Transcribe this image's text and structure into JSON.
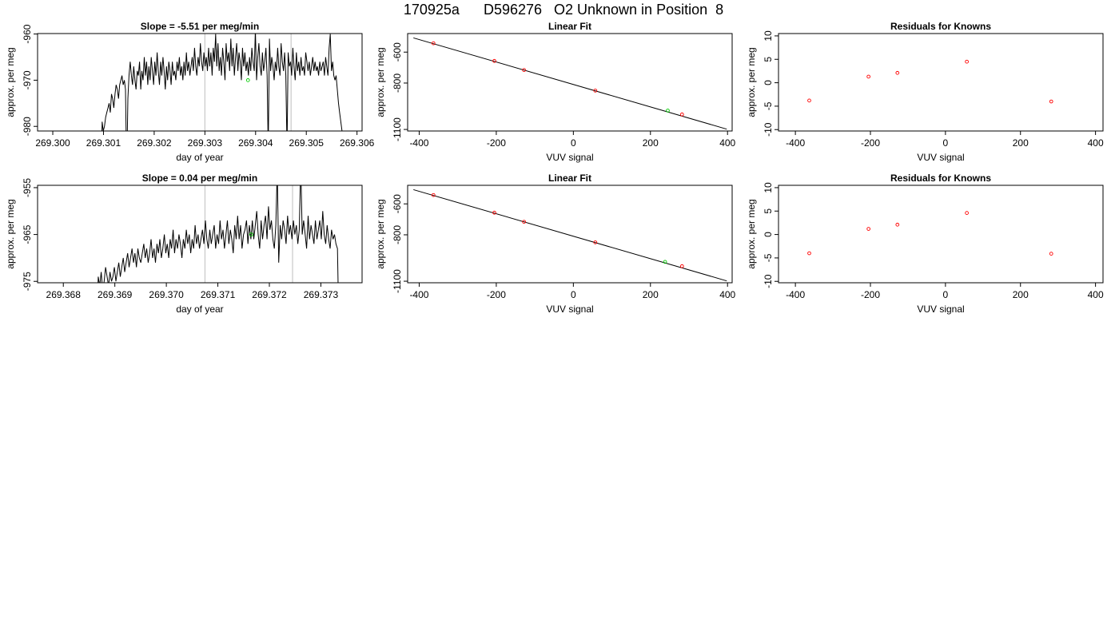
{
  "header": {
    "title": "170925a      D596276   O2 Unknown in Position  8"
  },
  "colors": {
    "known_point": "#ff0000",
    "unknown_point": "#00cc00",
    "series": "#000000",
    "marker_line": "#c8c8c8"
  },
  "chart_data": [
    {
      "id": "row1-timeseries",
      "type": "line",
      "title": "Slope =  -5.51  per meg/min",
      "xlabel": "day of year",
      "ylabel": "approx. per meg",
      "xlim": [
        269.2997,
        269.3061
      ],
      "ylim": [
        -981,
        -959.9
      ],
      "xticks": [
        "269.300",
        "269.301",
        "269.302",
        "269.303",
        "269.304",
        "269.305",
        "269.306"
      ],
      "xtick_values": [
        269.3,
        269.301,
        269.302,
        269.303,
        269.304,
        269.305,
        269.306
      ],
      "yticks": [
        "-960",
        "-970",
        "-980"
      ],
      "ytick_values": [
        -960,
        -970,
        -980
      ],
      "vertical_markers": [
        269.303,
        269.3047
      ],
      "unknown_point": {
        "x": 269.30385,
        "y": -970.0
      },
      "series_x_range": [
        269.30095,
        269.30575
      ],
      "series": [
        -992,
        -979,
        -981,
        -980,
        -978,
        -977,
        -976,
        -975,
        -977,
        -973,
        -974,
        -976,
        -973,
        -971,
        -972,
        -974,
        -971,
        -970,
        -969,
        -971,
        -970,
        -972,
        -990,
        -974,
        -969,
        -966,
        -969,
        -971,
        -967,
        -970,
        -972,
        -968,
        -969,
        -966,
        -972,
        -968,
        -970,
        -965,
        -969,
        -966,
        -971,
        -967,
        -970,
        -965,
        -968,
        -971,
        -966,
        -969,
        -964,
        -968,
        -971,
        -966,
        -969,
        -965,
        -968,
        -972,
        -967,
        -970,
        -966,
        -968,
        -971,
        -966,
        -969,
        -968,
        -970,
        -966,
        -968,
        -965,
        -969,
        -967,
        -970,
        -966,
        -969,
        -964,
        -968,
        -966,
        -969,
        -967,
        -965,
        -968,
        -963,
        -967,
        -969,
        -965,
        -967,
        -962,
        -966,
        -968,
        -964,
        -967,
        -965,
        -968,
        -963,
        -967,
        -964,
        -969,
        -963,
        -966,
        -960,
        -967,
        -962,
        -968,
        -965,
        -969,
        -963,
        -966,
        -970,
        -962,
        -966,
        -964,
        -968,
        -961,
        -967,
        -963,
        -969,
        -965,
        -962,
        -968,
        -964,
        -966,
        -970,
        -963,
        -967,
        -964,
        -968,
        -966,
        -969,
        -965,
        -968,
        -963,
        -966,
        -968,
        -959,
        -970,
        -965,
        -962,
        -967,
        -969,
        -964,
        -968,
        -966,
        -963,
        -969,
        -985,
        -961,
        -968,
        -965,
        -967,
        -970,
        -966,
        -968,
        -963,
        -967,
        -969,
        -962,
        -966,
        -968,
        -964,
        -969,
        -985,
        -964,
        -967,
        -966,
        -969,
        -963,
        -967,
        -970,
        -964,
        -968,
        -966,
        -969,
        -965,
        -968,
        -967,
        -969,
        -964,
        -966,
        -968,
        -966,
        -969,
        -967,
        -965,
        -968,
        -966,
        -968,
        -967,
        -969,
        -966,
        -968,
        -967,
        -966,
        -969,
        -965,
        -967,
        -969,
        -963,
        -960,
        -968,
        -966,
        -969,
        -970,
        -969,
        -972,
        -975,
        -977,
        -979,
        -981,
        -983,
        -985
      ]
    },
    {
      "id": "row1-linearfit",
      "type": "scatter",
      "title": "Linear Fit",
      "xlabel": "VUV signal",
      "ylabel": "approx. per meg",
      "xlim": [
        -430,
        412
      ],
      "ylim": [
        -1110,
        -480
      ],
      "xticks": [
        "-400",
        "-200",
        "0",
        "200",
        "400"
      ],
      "xtick_values": [
        -400,
        -200,
        0,
        200,
        400
      ],
      "yticks": [
        "-600",
        "-800",
        "-1100"
      ],
      "ytick_values": [
        -600,
        -800,
        -1100
      ],
      "fit_line": {
        "x": [
          -415,
          398
        ],
        "y": [
          -508,
          -1098
        ]
      },
      "known_points": {
        "x": [
          -363,
          -205,
          -128,
          57,
          282
        ],
        "y": [
          -543,
          -657,
          -716,
          -849,
          -1003
        ]
      },
      "unknown_points": {
        "x": [
          245
        ],
        "y": [
          -978
        ]
      }
    },
    {
      "id": "row1-residuals",
      "type": "scatter",
      "title": "Residuals for Knowns",
      "xlabel": "VUV signal",
      "ylabel": "approx. per meg",
      "xlim": [
        -445,
        420
      ],
      "ylim": [
        -10.3,
        10.5
      ],
      "xticks": [
        "-400",
        "-200",
        "0",
        "200",
        "400"
      ],
      "xtick_values": [
        -400,
        -200,
        0,
        200,
        400
      ],
      "yticks": [
        "10",
        "5",
        "0",
        "-5",
        "-10"
      ],
      "ytick_values": [
        10,
        5,
        0,
        -5,
        -10
      ],
      "known_points": {
        "x": [
          -363,
          -205,
          -128,
          57,
          282
        ],
        "y": [
          -3.8,
          1.3,
          2.1,
          4.5,
          -4.0
        ]
      }
    },
    {
      "id": "row2-timeseries",
      "type": "line",
      "title": "Slope =  0.04  per meg/min",
      "xlabel": "day of year",
      "ylabel": "approx. per meg",
      "xlim": [
        269.3675,
        269.3738
      ],
      "ylim": [
        -975.3,
        -954.5
      ],
      "xticks": [
        "269.368",
        "269.369",
        "269.370",
        "269.371",
        "269.372",
        "269.373"
      ],
      "xtick_values": [
        269.368,
        269.369,
        269.37,
        269.371,
        269.372,
        269.373
      ],
      "yticks": [
        "-955",
        "-965",
        "-975"
      ],
      "ytick_values": [
        -955,
        -965,
        -975
      ],
      "vertical_markers": [
        269.37075,
        269.37245
      ],
      "unknown_point": {
        "x": 269.37165,
        "y": -965.0
      },
      "series_x_range": [
        269.36865,
        269.37335
      ],
      "series": [
        -985,
        -974,
        -976,
        -973,
        -977,
        -975,
        -972,
        -974,
        -976,
        -973,
        -975,
        -974,
        -972,
        -975,
        -973,
        -971,
        -974,
        -972,
        -970,
        -973,
        -971,
        -969,
        -972,
        -970,
        -968,
        -971,
        -969,
        -972,
        -968,
        -970,
        -971,
        -969,
        -967,
        -970,
        -968,
        -971,
        -969,
        -966,
        -970,
        -968,
        -971,
        -967,
        -969,
        -966,
        -970,
        -968,
        -965,
        -969,
        -967,
        -970,
        -966,
        -968,
        -964,
        -969,
        -966,
        -968,
        -965,
        -967,
        -970,
        -966,
        -968,
        -964,
        -967,
        -965,
        -969,
        -966,
        -968,
        -963,
        -967,
        -965,
        -968,
        -966,
        -964,
        -967,
        -962,
        -966,
        -968,
        -964,
        -967,
        -965,
        -963,
        -968,
        -965,
        -967,
        -962,
        -966,
        -964,
        -968,
        -965,
        -962,
        -967,
        -964,
        -966,
        -969,
        -963,
        -966,
        -961,
        -966,
        -963,
        -968,
        -965,
        -964,
        -962,
        -967,
        -963,
        -966,
        -962,
        -966,
        -963,
        -960,
        -965,
        -968,
        -962,
        -966,
        -963,
        -961,
        -966,
        -959,
        -964,
        -962,
        -966,
        -968,
        -963,
        -951,
        -971,
        -963,
        -966,
        -962,
        -964,
        -967,
        -961,
        -965,
        -963,
        -966,
        -962,
        -965,
        -963,
        -967,
        -964,
        -950,
        -965,
        -962,
        -965,
        -968,
        -961,
        -966,
        -963,
        -965,
        -967,
        -962,
        -966,
        -964,
        -962,
        -966,
        -960,
        -965,
        -967,
        -963,
        -966,
        -968,
        -964,
        -966,
        -965,
        -967,
        -968,
        -985
      ]
    },
    {
      "id": "row2-linearfit",
      "type": "scatter",
      "title": "Linear Fit",
      "xlabel": "VUV signal",
      "ylabel": "approx. per meg",
      "xlim": [
        -430,
        412
      ],
      "ylim": [
        -1110,
        -480
      ],
      "xticks": [
        "-400",
        "-200",
        "0",
        "200",
        "400"
      ],
      "xtick_values": [
        -400,
        -200,
        0,
        200,
        400
      ],
      "yticks": [
        "-600",
        "-800",
        "-1100"
      ],
      "ytick_values": [
        -600,
        -800,
        -1100
      ],
      "fit_line": {
        "x": [
          -415,
          398
        ],
        "y": [
          -508,
          -1098
        ]
      },
      "known_points": {
        "x": [
          -363,
          -205,
          -128,
          57,
          282
        ],
        "y": [
          -543,
          -657,
          -716,
          -849,
          -1003
        ]
      },
      "unknown_points": {
        "x": [
          238
        ],
        "y": [
          -975
        ]
      }
    },
    {
      "id": "row2-residuals",
      "type": "scatter",
      "title": "Residuals for Knowns",
      "xlabel": "VUV signal",
      "ylabel": "approx. per meg",
      "xlim": [
        -445,
        420
      ],
      "ylim": [
        -10.3,
        10.5
      ],
      "xticks": [
        "-400",
        "-200",
        "0",
        "200",
        "400"
      ],
      "xtick_values": [
        -400,
        -200,
        0,
        200,
        400
      ],
      "yticks": [
        "10",
        "5",
        "0",
        "-5",
        "-10"
      ],
      "ytick_values": [
        10,
        5,
        0,
        -5,
        -10
      ],
      "known_points": {
        "x": [
          -363,
          -205,
          -128,
          57,
          282
        ],
        "y": [
          -4.0,
          1.2,
          2.1,
          4.6,
          -4.1
        ]
      }
    }
  ]
}
